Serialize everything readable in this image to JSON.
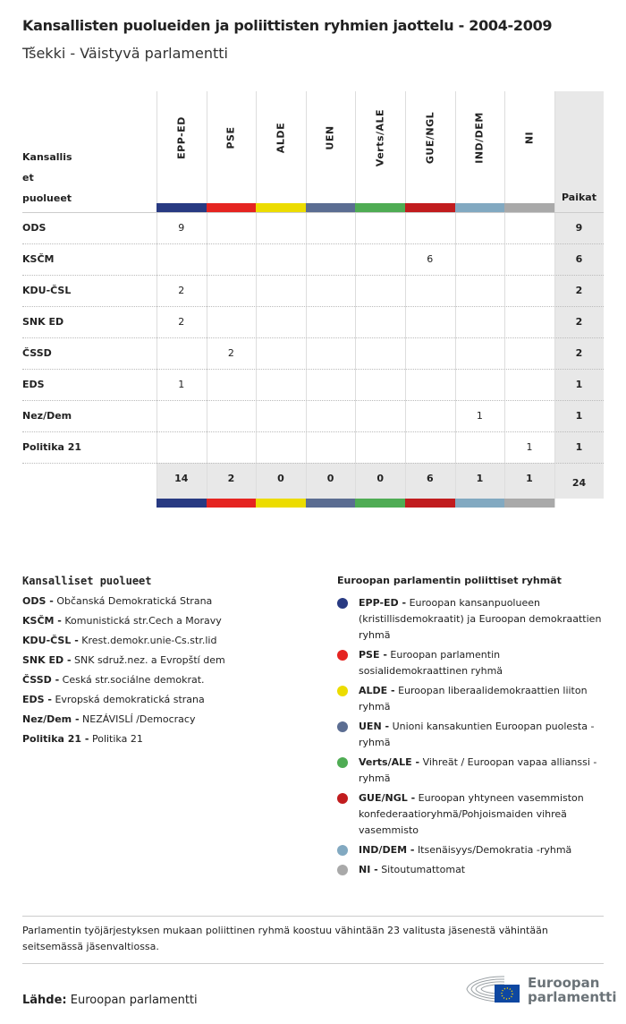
{
  "title": "Kansallisten puolueiden ja poliittisten ryhmien jaottelu - 2004-2009",
  "subtitle": "Tšekki - Väistyvä parlamentti",
  "chart_data": {
    "type": "table",
    "row_header": "Kansallis et puolueet",
    "row_header_lines": [
      "Kansallis",
      "et",
      "puolueet"
    ],
    "total_header": "Paikat",
    "groups": [
      {
        "name": "EPP-ED",
        "color": "#283a82"
      },
      {
        "name": "PSE",
        "color": "#e52421"
      },
      {
        "name": "ALDE",
        "color": "#ecdc00"
      },
      {
        "name": "UEN",
        "color": "#5b6d92"
      },
      {
        "name": "Verts/ALE",
        "color": "#4fac54"
      },
      {
        "name": "GUE/NGL",
        "color": "#c11c1e"
      },
      {
        "name": "IND/DEM",
        "color": "#82a9c1"
      },
      {
        "name": "NI",
        "color": "#a9a9a9"
      }
    ],
    "rows": [
      {
        "party": "ODS",
        "values": [
          9,
          null,
          null,
          null,
          null,
          null,
          null,
          null
        ],
        "total": 9
      },
      {
        "party": "KSČM",
        "values": [
          null,
          null,
          null,
          null,
          null,
          6,
          null,
          null
        ],
        "total": 6
      },
      {
        "party": "KDU-ČSL",
        "values": [
          2,
          null,
          null,
          null,
          null,
          null,
          null,
          null
        ],
        "total": 2
      },
      {
        "party": "SNK ED",
        "values": [
          2,
          null,
          null,
          null,
          null,
          null,
          null,
          null
        ],
        "total": 2
      },
      {
        "party": "ČSSD",
        "values": [
          null,
          2,
          null,
          null,
          null,
          null,
          null,
          null
        ],
        "total": 2
      },
      {
        "party": "EDS",
        "values": [
          1,
          null,
          null,
          null,
          null,
          null,
          null,
          null
        ],
        "total": 1
      },
      {
        "party": "Nez/Dem",
        "values": [
          null,
          null,
          null,
          null,
          null,
          null,
          1,
          null
        ],
        "total": 1
      },
      {
        "party": "Politika 21",
        "values": [
          null,
          null,
          null,
          null,
          null,
          null,
          null,
          1
        ],
        "total": 1
      }
    ],
    "totals": [
      14,
      2,
      0,
      0,
      0,
      6,
      1,
      1
    ],
    "grand_total": 24
  },
  "legend_parties": {
    "title": "Kansalliset puolueet",
    "items": [
      {
        "abbr": "ODS -",
        "name": "Občanská Demokratická Strana"
      },
      {
        "abbr": "KSČM -",
        "name": "Komunistická str.Cech a Moravy"
      },
      {
        "abbr": "KDU-ČSL -",
        "name": "Krest.demokr.unie-Cs.str.lid"
      },
      {
        "abbr": "SNK ED -",
        "name": "SNK sdruž.nez. a Evropští dem"
      },
      {
        "abbr": "ČSSD -",
        "name": "Ceská str.sociálne demokrat."
      },
      {
        "abbr": "EDS -",
        "name": "Evropská demokratická strana"
      },
      {
        "abbr": "Nez/Dem -",
        "name": "NEZÁVISLÍ /Democracy"
      },
      {
        "abbr": "Politika 21 -",
        "name": "Politika 21"
      }
    ]
  },
  "legend_groups": {
    "title": "Euroopan parlamentin poliittiset ryhmät",
    "items": [
      {
        "abbr": "EPP-ED -",
        "name": "Euroopan kansanpuolueen (kristillisdemokraatit) ja Euroopan demokraattien ryhmä",
        "color": "#283a82"
      },
      {
        "abbr": "PSE -",
        "name": "Euroopan parlamentin sosialidemokraattinen ryhmä",
        "color": "#e52421"
      },
      {
        "abbr": "ALDE -",
        "name": "Euroopan liberaalidemokraattien liiton ryhmä",
        "color": "#ecdc00"
      },
      {
        "abbr": "UEN -",
        "name": "Unioni kansakuntien Euroopan puolesta - ryhmä",
        "color": "#5b6d92"
      },
      {
        "abbr": "Verts/ALE -",
        "name": "Vihreät / Euroopan vapaa allianssi - ryhmä",
        "color": "#4fac54"
      },
      {
        "abbr": "GUE/NGL -",
        "name": "Euroopan yhtyneen vasemmiston konfederaatioryhmä/Pohjoismaiden vihreä vasemmisto",
        "color": "#c11c1e"
      },
      {
        "abbr": "IND/DEM -",
        "name": "Itsenäisyys/Demokratia -ryhmä",
        "color": "#82a9c1"
      },
      {
        "abbr": "NI -",
        "name": "Sitoutumattomat",
        "color": "#a9a9a9"
      }
    ]
  },
  "note": "Parlamentin työjärjestyksen mukaan poliittinen ryhmä koostuu vähintään 23 valitusta jäsenestä vähintään seitsemässä jäsenvaltiossa.",
  "source_label": "Lähde:",
  "source": "Euroopan parlamentti",
  "logo_text": [
    "Euroopan",
    "parlamentti"
  ]
}
